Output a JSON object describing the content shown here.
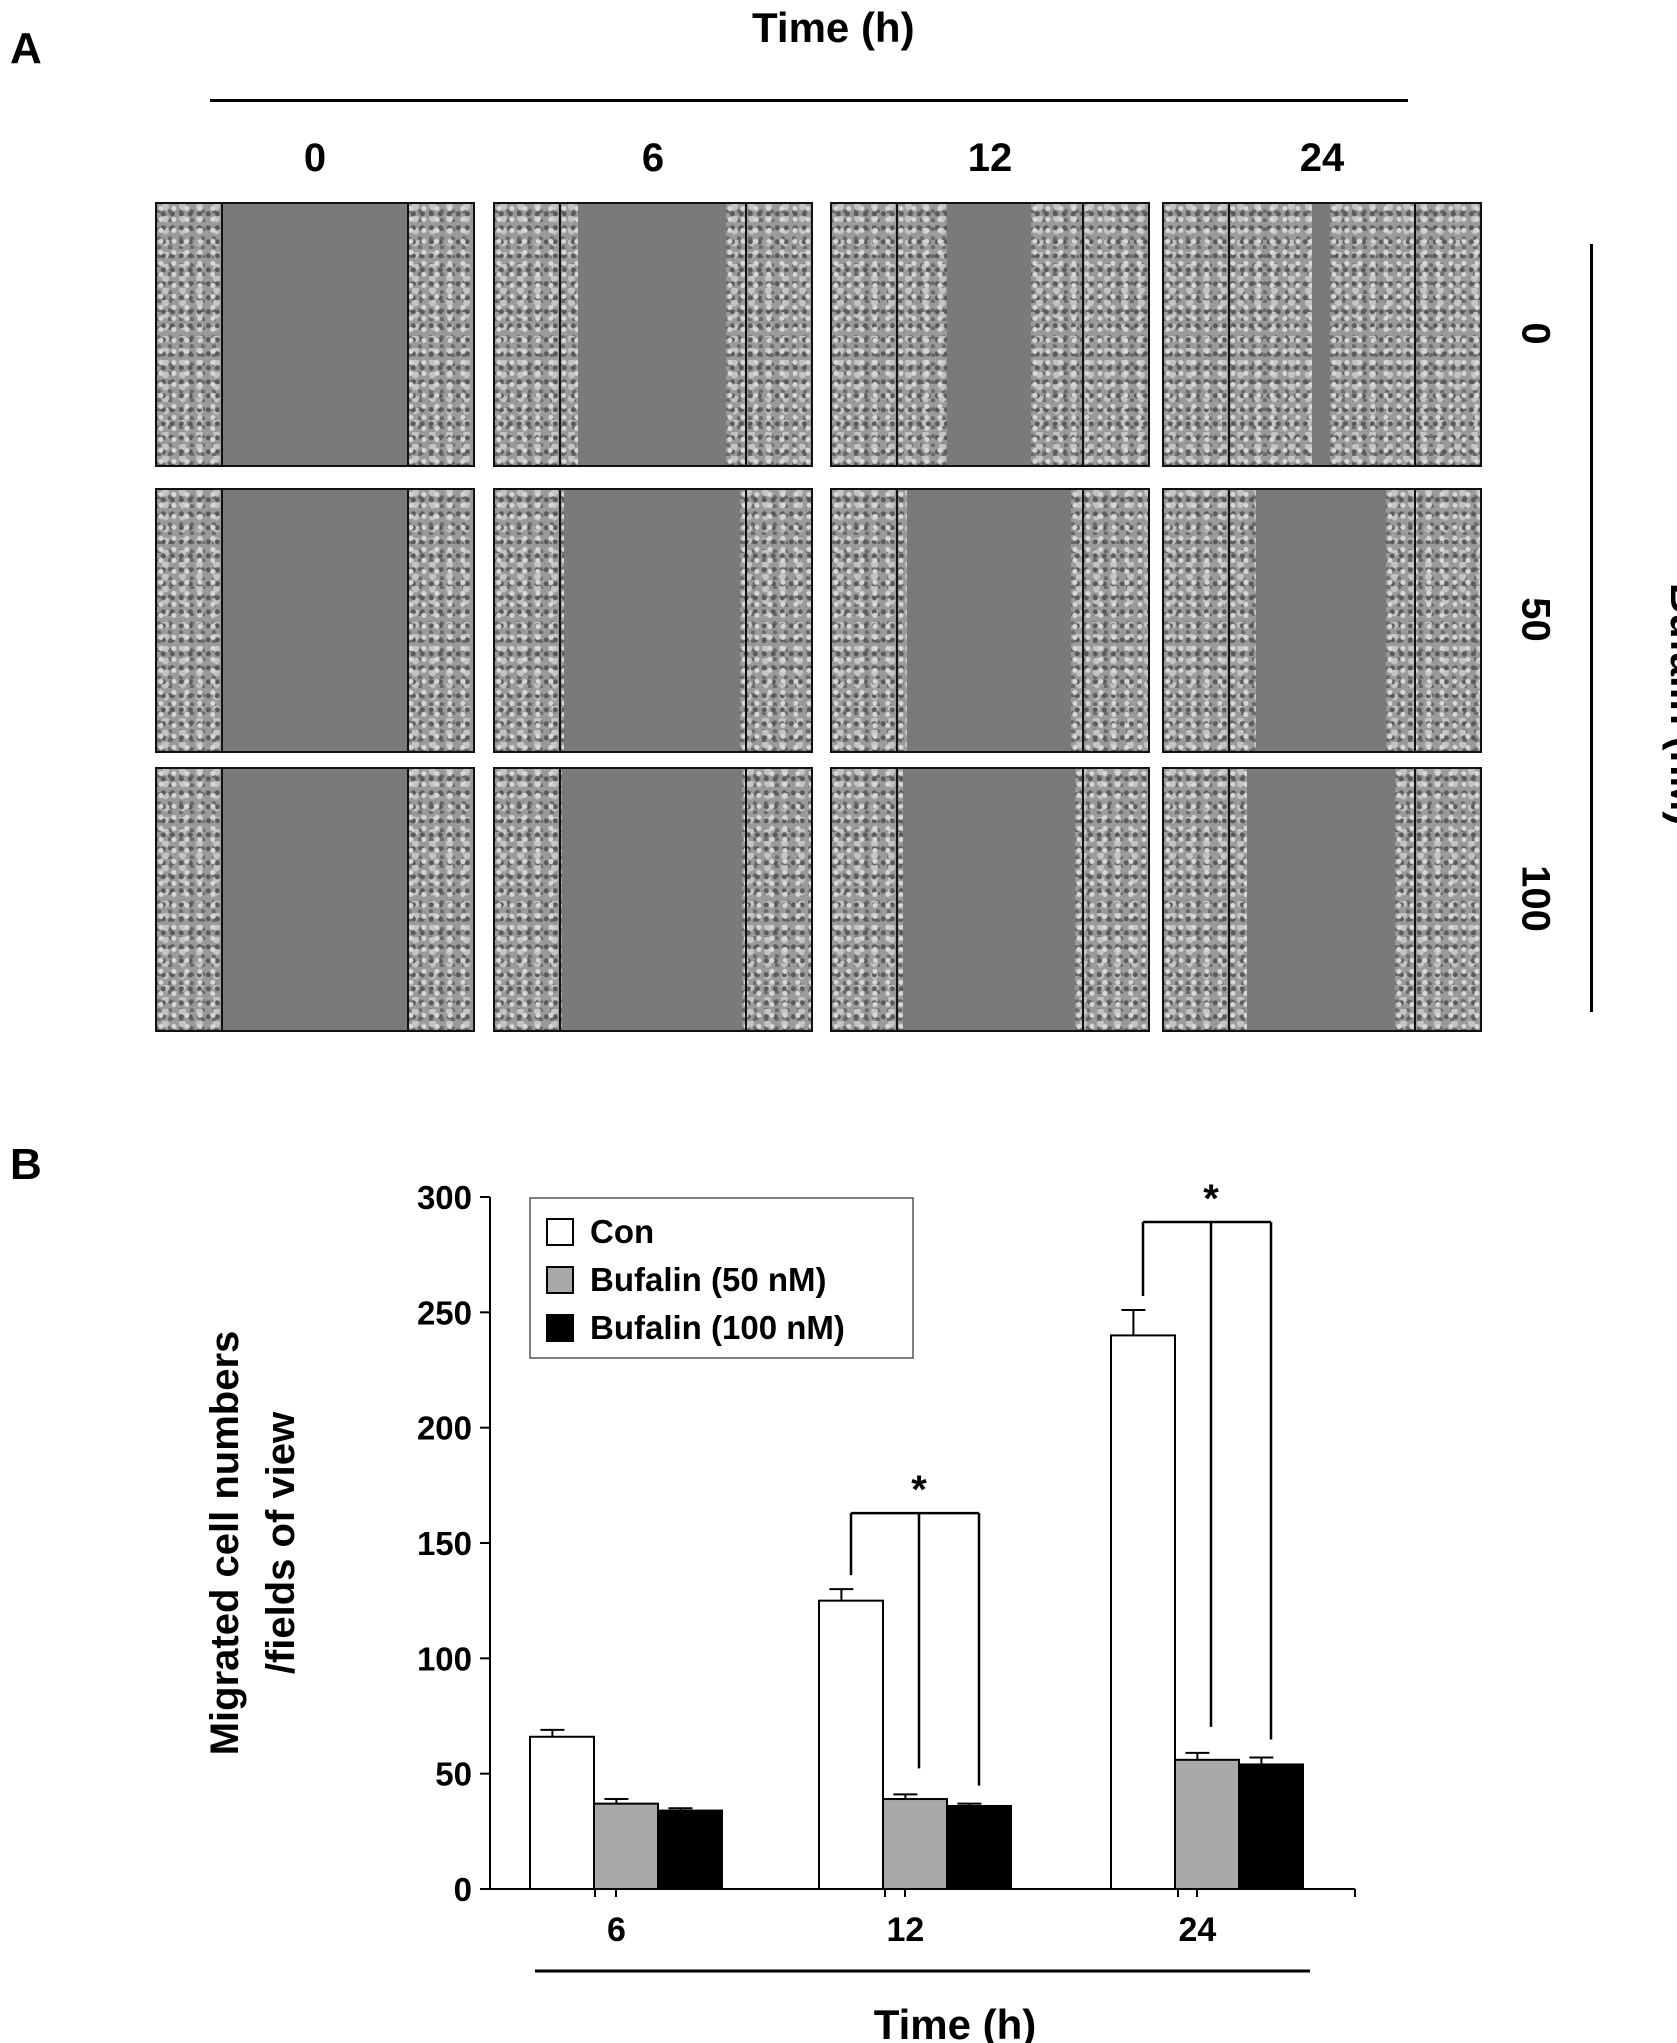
{
  "panelA": {
    "letter": "A",
    "time_title": "Time (h)",
    "time_ticks": [
      "0",
      "6",
      "12",
      "24"
    ],
    "bufalin_title": "Bufalin (nM)",
    "bufalin_ticks": [
      "0",
      "50",
      "100"
    ],
    "wound_gap_fraction": [
      [
        1.0,
        0.8,
        0.45,
        0.1
      ],
      [
        1.0,
        0.95,
        0.88,
        0.7
      ],
      [
        1.0,
        0.97,
        0.92,
        0.8
      ]
    ]
  },
  "panelB": {
    "letter": "B"
  },
  "chart_data": {
    "type": "bar",
    "xlabel": "Time (h)",
    "ylabel_lines": [
      "Migrated cell numbers",
      "/fields of view"
    ],
    "categories": [
      "6",
      "12",
      "24"
    ],
    "series": [
      {
        "name": "Con",
        "values": [
          66,
          125,
          240
        ],
        "errors": [
          3,
          5,
          11
        ],
        "color": "#ffffff"
      },
      {
        "name": "Bufalin (50 nM)",
        "values": [
          37,
          39,
          56
        ],
        "errors": [
          2,
          2,
          3
        ],
        "color": "#a9a9a9"
      },
      {
        "name": "Bufalin (100 nM)",
        "values": [
          34,
          36,
          54
        ],
        "errors": [
          1,
          1,
          3
        ],
        "color": "#000000"
      }
    ],
    "ylim": [
      0,
      300
    ],
    "yticks": [
      "0",
      "50",
      "100",
      "150",
      "200",
      "250",
      "300"
    ],
    "significance": [
      {
        "category": "12",
        "mark": "*"
      },
      {
        "category": "24",
        "mark": "*"
      }
    ],
    "legend_position": "top-left",
    "grid": false
  }
}
